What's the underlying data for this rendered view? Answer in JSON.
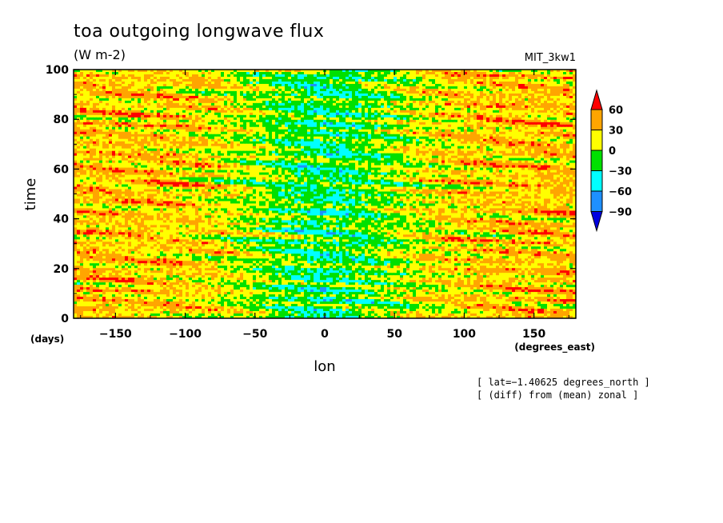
{
  "chart_data": {
    "type": "heatmap",
    "title": "toa outgoing longwave flux",
    "units": "(W m-2)",
    "model": "MIT_3kw1",
    "xlabel": "lon",
    "xunits": "(degrees_east)",
    "ylabel": "time",
    "yunits": "(days)",
    "xlim": [
      -180,
      180
    ],
    "ylim": [
      0,
      100
    ],
    "xticks": [
      -150,
      -100,
      -50,
      0,
      50,
      100,
      150
    ],
    "xtick_labels": [
      "−150",
      "−100",
      "−50",
      "0",
      "50",
      "100",
      "150"
    ],
    "yticks": [
      0,
      20,
      40,
      60,
      80,
      100
    ],
    "ytick_labels": [
      "0",
      "20",
      "40",
      "60",
      "80",
      "100"
    ],
    "colorbar": {
      "levels": [
        60,
        30,
        0,
        -30,
        -60,
        -90
      ],
      "level_labels": [
        "60",
        "30",
        "0",
        "−30",
        "−60",
        "−90"
      ],
      "colors": [
        "#ff0000",
        "#ffa500",
        "#ffff00",
        "#00e000",
        "#00ffff",
        "#1e90ff",
        "#0000e0"
      ]
    },
    "annotations": [
      "[ lat=−1.40625 degrees_north ]",
      "[ (diff) from (mean) zonal ]"
    ],
    "field_description": "OLA anomaly: negative (blue) in central band around lon -70 to 70, positive (orange) at lon beyond ±100"
  }
}
